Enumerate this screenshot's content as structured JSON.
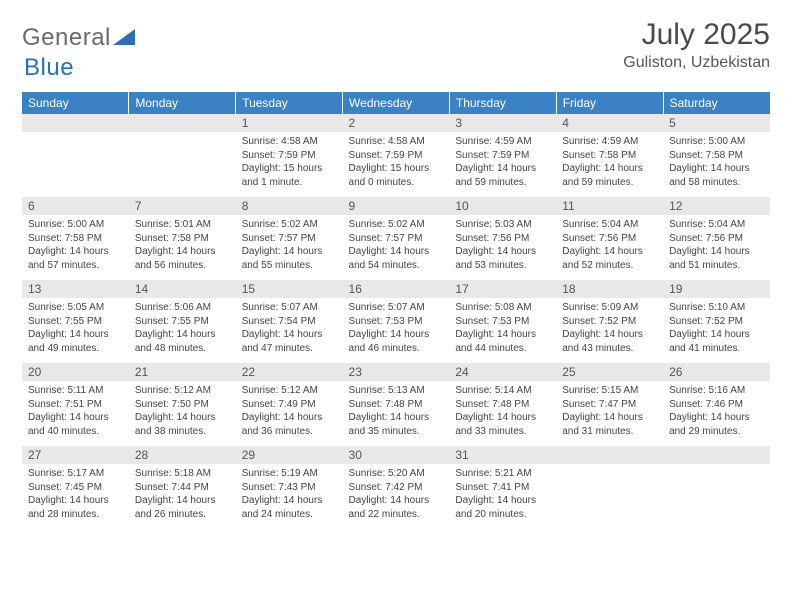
{
  "brand": {
    "part1": "General",
    "part2": "Blue"
  },
  "title": "July 2025",
  "location": "Guliston, Uzbekistan",
  "colors": {
    "header_bg": "#3b82c4",
    "header_text": "#ffffff",
    "rule": "#2d6fb5",
    "daynum_bg": "#e8e8e8",
    "body_text": "#444444"
  },
  "weekdays": [
    "Sunday",
    "Monday",
    "Tuesday",
    "Wednesday",
    "Thursday",
    "Friday",
    "Saturday"
  ],
  "weeks": [
    [
      {
        "n": "",
        "info": ""
      },
      {
        "n": "",
        "info": ""
      },
      {
        "n": "1",
        "info": "Sunrise: 4:58 AM\nSunset: 7:59 PM\nDaylight: 15 hours and 1 minute."
      },
      {
        "n": "2",
        "info": "Sunrise: 4:58 AM\nSunset: 7:59 PM\nDaylight: 15 hours and 0 minutes."
      },
      {
        "n": "3",
        "info": "Sunrise: 4:59 AM\nSunset: 7:59 PM\nDaylight: 14 hours and 59 minutes."
      },
      {
        "n": "4",
        "info": "Sunrise: 4:59 AM\nSunset: 7:58 PM\nDaylight: 14 hours and 59 minutes."
      },
      {
        "n": "5",
        "info": "Sunrise: 5:00 AM\nSunset: 7:58 PM\nDaylight: 14 hours and 58 minutes."
      }
    ],
    [
      {
        "n": "6",
        "info": "Sunrise: 5:00 AM\nSunset: 7:58 PM\nDaylight: 14 hours and 57 minutes."
      },
      {
        "n": "7",
        "info": "Sunrise: 5:01 AM\nSunset: 7:58 PM\nDaylight: 14 hours and 56 minutes."
      },
      {
        "n": "8",
        "info": "Sunrise: 5:02 AM\nSunset: 7:57 PM\nDaylight: 14 hours and 55 minutes."
      },
      {
        "n": "9",
        "info": "Sunrise: 5:02 AM\nSunset: 7:57 PM\nDaylight: 14 hours and 54 minutes."
      },
      {
        "n": "10",
        "info": "Sunrise: 5:03 AM\nSunset: 7:56 PM\nDaylight: 14 hours and 53 minutes."
      },
      {
        "n": "11",
        "info": "Sunrise: 5:04 AM\nSunset: 7:56 PM\nDaylight: 14 hours and 52 minutes."
      },
      {
        "n": "12",
        "info": "Sunrise: 5:04 AM\nSunset: 7:56 PM\nDaylight: 14 hours and 51 minutes."
      }
    ],
    [
      {
        "n": "13",
        "info": "Sunrise: 5:05 AM\nSunset: 7:55 PM\nDaylight: 14 hours and 49 minutes."
      },
      {
        "n": "14",
        "info": "Sunrise: 5:06 AM\nSunset: 7:55 PM\nDaylight: 14 hours and 48 minutes."
      },
      {
        "n": "15",
        "info": "Sunrise: 5:07 AM\nSunset: 7:54 PM\nDaylight: 14 hours and 47 minutes."
      },
      {
        "n": "16",
        "info": "Sunrise: 5:07 AM\nSunset: 7:53 PM\nDaylight: 14 hours and 46 minutes."
      },
      {
        "n": "17",
        "info": "Sunrise: 5:08 AM\nSunset: 7:53 PM\nDaylight: 14 hours and 44 minutes."
      },
      {
        "n": "18",
        "info": "Sunrise: 5:09 AM\nSunset: 7:52 PM\nDaylight: 14 hours and 43 minutes."
      },
      {
        "n": "19",
        "info": "Sunrise: 5:10 AM\nSunset: 7:52 PM\nDaylight: 14 hours and 41 minutes."
      }
    ],
    [
      {
        "n": "20",
        "info": "Sunrise: 5:11 AM\nSunset: 7:51 PM\nDaylight: 14 hours and 40 minutes."
      },
      {
        "n": "21",
        "info": "Sunrise: 5:12 AM\nSunset: 7:50 PM\nDaylight: 14 hours and 38 minutes."
      },
      {
        "n": "22",
        "info": "Sunrise: 5:12 AM\nSunset: 7:49 PM\nDaylight: 14 hours and 36 minutes."
      },
      {
        "n": "23",
        "info": "Sunrise: 5:13 AM\nSunset: 7:48 PM\nDaylight: 14 hours and 35 minutes."
      },
      {
        "n": "24",
        "info": "Sunrise: 5:14 AM\nSunset: 7:48 PM\nDaylight: 14 hours and 33 minutes."
      },
      {
        "n": "25",
        "info": "Sunrise: 5:15 AM\nSunset: 7:47 PM\nDaylight: 14 hours and 31 minutes."
      },
      {
        "n": "26",
        "info": "Sunrise: 5:16 AM\nSunset: 7:46 PM\nDaylight: 14 hours and 29 minutes."
      }
    ],
    [
      {
        "n": "27",
        "info": "Sunrise: 5:17 AM\nSunset: 7:45 PM\nDaylight: 14 hours and 28 minutes."
      },
      {
        "n": "28",
        "info": "Sunrise: 5:18 AM\nSunset: 7:44 PM\nDaylight: 14 hours and 26 minutes."
      },
      {
        "n": "29",
        "info": "Sunrise: 5:19 AM\nSunset: 7:43 PM\nDaylight: 14 hours and 24 minutes."
      },
      {
        "n": "30",
        "info": "Sunrise: 5:20 AM\nSunset: 7:42 PM\nDaylight: 14 hours and 22 minutes."
      },
      {
        "n": "31",
        "info": "Sunrise: 5:21 AM\nSunset: 7:41 PM\nDaylight: 14 hours and 20 minutes."
      },
      {
        "n": "",
        "info": ""
      },
      {
        "n": "",
        "info": ""
      }
    ]
  ]
}
